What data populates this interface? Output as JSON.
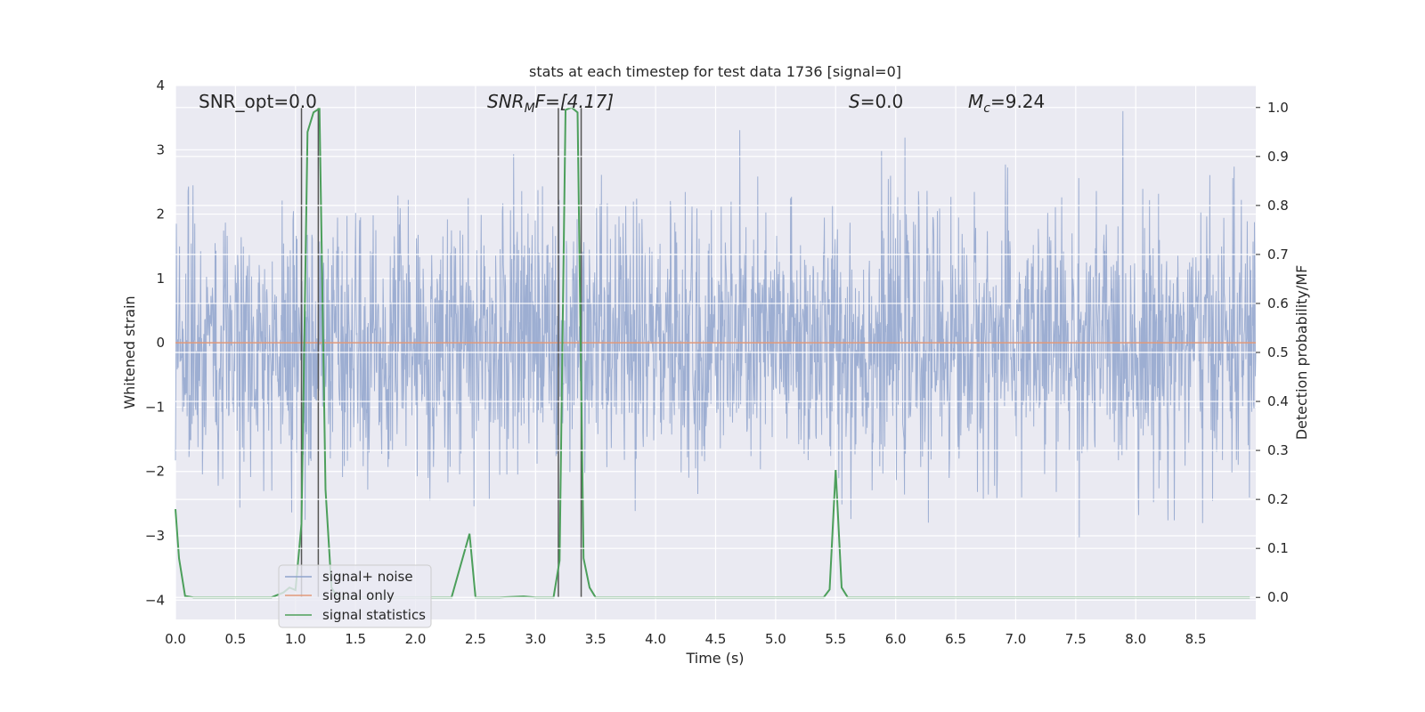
{
  "chart_data": {
    "type": "line",
    "title": "stats at each timestep for test data 1736 [signal=0]",
    "xlabel": "Time (s)",
    "ylabel_left": "Whitened strain",
    "ylabel_right": "Detection probability/MF",
    "xlim": [
      0,
      9.0
    ],
    "ylim_left": [
      -4.3,
      4.0
    ],
    "ylim_right": [
      -0.045,
      1.045
    ],
    "x_ticks": [
      "0.0",
      "0.5",
      "1.0",
      "1.5",
      "2.0",
      "2.5",
      "3.0",
      "3.5",
      "4.0",
      "4.5",
      "5.0",
      "5.5",
      "6.0",
      "6.5",
      "7.0",
      "7.5",
      "8.0",
      "8.5"
    ],
    "y_ticks_left": [
      "−4",
      "−3",
      "−2",
      "−1",
      "0",
      "1",
      "2",
      "3",
      "4"
    ],
    "y_ticks_right": [
      "0.0",
      "0.1",
      "0.2",
      "0.3",
      "0.4",
      "0.5",
      "0.6",
      "0.7",
      "0.8",
      "0.9",
      "1.0"
    ],
    "grid": true,
    "legend_position": "lower-left",
    "annotations": {
      "snr_opt": "SNR_opt=0.0",
      "snr_mf_main": "SNR",
      "snr_mf_sub": "M",
      "snr_mf_rest": "F=[4.17]",
      "s_italic": "S",
      "s_rest": "=0.0",
      "mc_main": "M",
      "mc_sub": "c",
      "mc_rest": "=9.24"
    },
    "series": [
      {
        "name": "signal+ noise",
        "color": "#8fa3cc",
        "description_values": "whitened noisy strain, approximately Gaussian noise spanning -3.3 to 3.6"
      },
      {
        "name": "signal only",
        "color": "#e1997a",
        "y": 0
      },
      {
        "name": "signal statistics",
        "color": "#4c9f5b",
        "axis": "right",
        "x": [
          0.0,
          0.03,
          0.08,
          0.15,
          0.3,
          0.5,
          0.7,
          0.8,
          0.9,
          0.95,
          1.0,
          1.05,
          1.1,
          1.15,
          1.2,
          1.25,
          1.3,
          1.35,
          1.5,
          2.0,
          2.3,
          2.45,
          2.5,
          2.7,
          2.9,
          3.0,
          3.15,
          3.2,
          3.25,
          3.3,
          3.35,
          3.4,
          3.45,
          3.5,
          4.0,
          4.5,
          5.0,
          5.4,
          5.45,
          5.5,
          5.55,
          5.6,
          6.0,
          7.0,
          8.0,
          8.95
        ],
        "y": [
          0.18,
          0.08,
          0.003,
          0.0,
          0.0,
          0.0,
          0.0,
          0.0,
          0.01,
          0.02,
          0.015,
          0.15,
          0.95,
          0.99,
          0.998,
          0.22,
          0.02,
          0.0,
          0.0,
          0.0,
          0.0,
          0.13,
          0.0,
          0.0,
          0.002,
          0.0,
          0.0,
          0.075,
          0.995,
          1.0,
          0.99,
          0.08,
          0.02,
          0.0,
          0.0,
          0.0,
          0.0,
          0.0,
          0.016,
          0.26,
          0.02,
          0.0,
          0.0,
          0.0,
          0.0,
          0.0
        ]
      }
    ],
    "markers": [
      {
        "x": 1.05,
        "color": "#555555"
      },
      {
        "x": 1.19,
        "color": "#555555"
      },
      {
        "x": 3.19,
        "color": "#555555"
      },
      {
        "x": 3.38,
        "color": "#555555"
      }
    ]
  }
}
